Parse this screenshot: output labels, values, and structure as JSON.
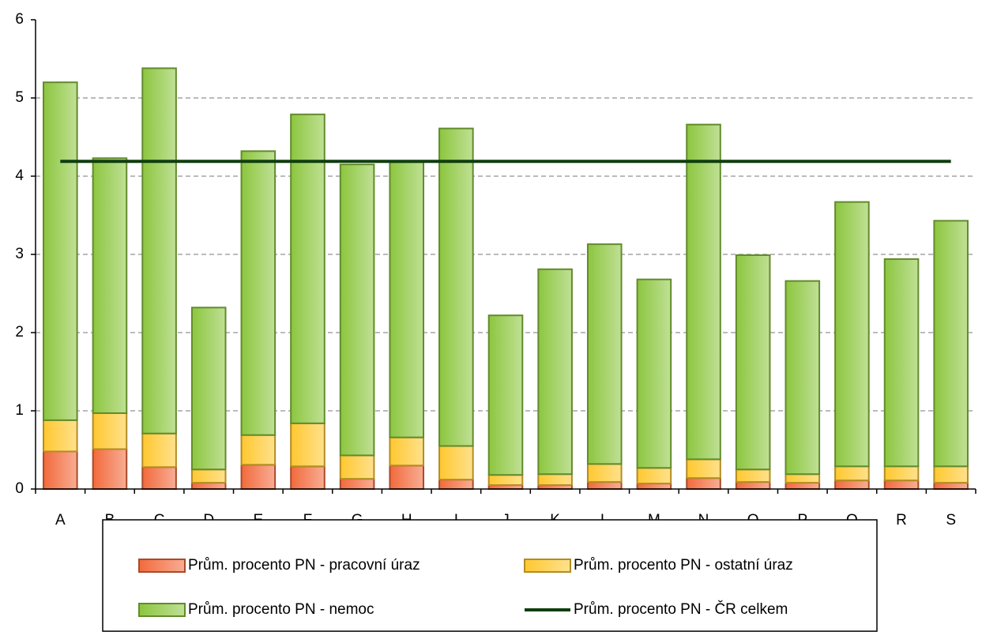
{
  "chart_data": {
    "type": "bar",
    "stacked": true,
    "categories": [
      "A",
      "B",
      "C",
      "D",
      "E",
      "F",
      "G",
      "H",
      "I",
      "J",
      "K",
      "L",
      "M",
      "N",
      "O",
      "P",
      "Q",
      "R",
      "S"
    ],
    "series": [
      {
        "name": "Prům. procento PN - pracovní úraz",
        "type": "bar",
        "color": "#f26a3c",
        "values": [
          0.48,
          0.51,
          0.28,
          0.08,
          0.31,
          0.29,
          0.13,
          0.3,
          0.12,
          0.05,
          0.05,
          0.09,
          0.07,
          0.14,
          0.09,
          0.08,
          0.11,
          0.11,
          0.08
        ]
      },
      {
        "name": "Prům. procento PN - ostatní úraz",
        "type": "bar",
        "color": "#ffc830",
        "values": [
          0.4,
          0.46,
          0.43,
          0.17,
          0.38,
          0.55,
          0.3,
          0.36,
          0.43,
          0.13,
          0.14,
          0.23,
          0.2,
          0.24,
          0.16,
          0.11,
          0.18,
          0.18,
          0.21
        ]
      },
      {
        "name": "Prům. procento PN - nemoc",
        "type": "bar",
        "color": "#8cc63f",
        "values": [
          4.32,
          3.26,
          4.67,
          2.07,
          3.63,
          3.95,
          3.72,
          3.52,
          4.06,
          2.04,
          2.62,
          2.81,
          2.41,
          4.28,
          2.74,
          2.47,
          3.38,
          2.65,
          3.14
        ]
      },
      {
        "name": "Prům. procento PN - ČR celkem",
        "type": "line",
        "color": "#0f3d0f",
        "values": [
          4.19,
          4.19,
          4.19,
          4.19,
          4.19,
          4.19,
          4.19,
          4.19,
          4.19,
          4.19,
          4.19,
          4.19,
          4.19,
          4.19,
          4.19,
          4.19,
          4.19,
          4.19,
          4.19
        ]
      }
    ],
    "ylim": [
      0,
      6
    ],
    "yticks": [
      0,
      1,
      2,
      3,
      4,
      5,
      6
    ],
    "grid": true,
    "legend": "bottom"
  }
}
